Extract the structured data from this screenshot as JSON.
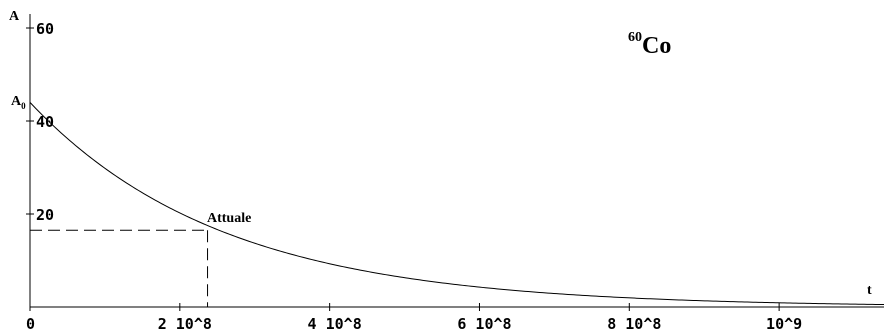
{
  "chart_data": {
    "type": "line",
    "title": "60Co",
    "title_parts": {
      "mass_number": "60",
      "element": "Co"
    },
    "xlabel": "t",
    "ylabel": "A",
    "a0_label": {
      "main": "A",
      "sub": "0"
    },
    "xlim": [
      0,
      1140000000
    ],
    "ylim": [
      0,
      60
    ],
    "x_ticks": [
      {
        "value": 0,
        "label": "0"
      },
      {
        "value": 200000000,
        "label": "2 10^8"
      },
      {
        "value": 400000000,
        "label": "4 10^8"
      },
      {
        "value": 600000000,
        "label": "6 10^8"
      },
      {
        "value": 800000000,
        "label": "8 10^8"
      },
      {
        "value": 1000000000,
        "label": "10^9"
      }
    ],
    "y_ticks": [
      {
        "value": 20,
        "label": "20"
      },
      {
        "value": 40,
        "label": "40"
      },
      {
        "value": 60,
        "label": "60"
      }
    ],
    "series": [
      {
        "x": [
          0,
          100000000,
          200000000,
          300000000,
          400000000,
          500000000,
          600000000,
          700000000,
          800000000,
          900000000,
          1000000000,
          1100000000,
          1140000000
        ],
        "y": [
          44,
          29.8,
          20.2,
          13.7,
          9.3,
          6.3,
          4.3,
          2.9,
          2.0,
          1.3,
          0.9,
          0.6,
          0.5
        ]
      }
    ],
    "annotation": {
      "label": "Attuale",
      "x": 237000000,
      "y": 16.5
    },
    "grid": false,
    "legend": "none"
  }
}
